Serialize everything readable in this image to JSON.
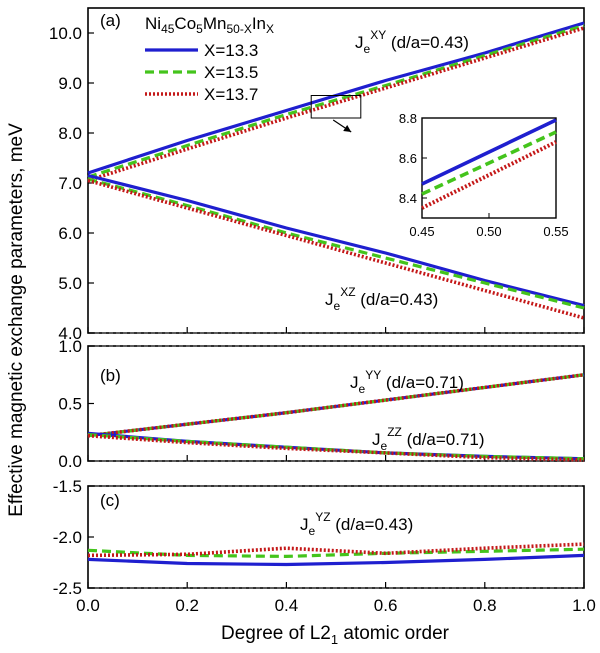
{
  "figure": {
    "ylabel": "Effective magnetic exchange parameters, meV",
    "xlabel_main": "Degree of L2",
    "xlabel_sub": "1",
    "xlabel_tail": " atomic order",
    "x_ticks": [
      "0.0",
      "0.2",
      "0.4",
      "0.6",
      "0.8",
      "1.0"
    ]
  },
  "colors": {
    "X=13.3": "#1f1fcf",
    "X=13.5": "#44c41c",
    "X=13.7": "#c41818"
  },
  "legend": {
    "title_ni": "Ni",
    "title_ni_sub": "45",
    "title_co": "Co",
    "title_co_sub": "5",
    "title_mn": "Mn",
    "title_mn_sub": "50-X",
    "title_in": "In",
    "title_in_sub": "X",
    "entries": [
      "X=13.3",
      "X=13.5",
      "X=13.7"
    ]
  },
  "chart_data": [
    {
      "type": "line",
      "panel_label": "(a)",
      "xlim": [
        0,
        1
      ],
      "ylim": [
        4.0,
        10.5
      ],
      "y_ticks": [
        "4.0",
        "5.0",
        "6.0",
        "7.0",
        "8.0",
        "9.0",
        "10.0"
      ],
      "annotations": [
        {
          "base": "J",
          "sub": "e",
          "sup": "XY",
          "tail": " (d/a=0.43)"
        },
        {
          "base": "J",
          "sub": "e",
          "sup": "XZ",
          "tail": " (d/a=0.43)"
        }
      ],
      "x": [
        0.0,
        0.2,
        0.4,
        0.6,
        0.8,
        1.0
      ],
      "series": [
        {
          "name": "X=13.3",
          "group": "XY",
          "values": [
            7.2,
            7.85,
            8.45,
            9.05,
            9.6,
            10.2
          ]
        },
        {
          "name": "X=13.5",
          "group": "XY",
          "values": [
            7.12,
            7.75,
            8.37,
            8.95,
            9.55,
            10.15
          ]
        },
        {
          "name": "X=13.7",
          "group": "XY",
          "values": [
            7.05,
            7.68,
            8.3,
            8.9,
            9.5,
            10.1
          ]
        },
        {
          "name": "X=13.3",
          "group": "XZ",
          "values": [
            7.15,
            6.65,
            6.1,
            5.6,
            5.05,
            4.55
          ]
        },
        {
          "name": "X=13.5",
          "group": "XZ",
          "values": [
            7.08,
            6.55,
            6.0,
            5.5,
            5.0,
            4.5
          ]
        },
        {
          "name": "X=13.7",
          "group": "XZ",
          "values": [
            7.05,
            6.5,
            5.95,
            5.4,
            4.85,
            4.3
          ]
        }
      ],
      "inset": {
        "xlim": [
          0.45,
          0.55
        ],
        "ylim": [
          8.3,
          8.8
        ],
        "x_ticks": [
          "0.45",
          "0.50",
          "0.55"
        ],
        "y_ticks": [
          "8.4",
          "8.6",
          "8.8"
        ],
        "x": [
          0.45,
          0.55
        ],
        "series": [
          {
            "name": "X=13.3",
            "values": [
              8.47,
              8.79
            ]
          },
          {
            "name": "X=13.5",
            "values": [
              8.42,
              8.73
            ]
          },
          {
            "name": "X=13.7",
            "values": [
              8.35,
              8.68
            ]
          }
        ]
      }
    },
    {
      "type": "line",
      "panel_label": "(b)",
      "xlim": [
        0,
        1
      ],
      "ylim": [
        0.0,
        1.0
      ],
      "y_ticks": [
        "0.0",
        "0.5",
        "1.0"
      ],
      "annotations": [
        {
          "base": "J",
          "sub": "e",
          "sup": "YY",
          "tail": " (d/a=0.71)"
        },
        {
          "base": "J",
          "sub": "e",
          "sup": "ZZ",
          "tail": " (d/a=0.71)"
        }
      ],
      "x": [
        0.0,
        0.2,
        0.4,
        0.6,
        0.8,
        1.0
      ],
      "series": [
        {
          "name": "X=13.3",
          "group": "YY",
          "values": [
            0.22,
            0.32,
            0.42,
            0.53,
            0.64,
            0.75
          ]
        },
        {
          "name": "X=13.5",
          "group": "YY",
          "values": [
            0.22,
            0.32,
            0.42,
            0.53,
            0.64,
            0.75
          ]
        },
        {
          "name": "X=13.7",
          "group": "YY",
          "values": [
            0.22,
            0.32,
            0.42,
            0.53,
            0.64,
            0.75
          ]
        },
        {
          "name": "X=13.3",
          "group": "ZZ",
          "values": [
            0.24,
            0.17,
            0.12,
            0.07,
            0.04,
            0.02
          ]
        },
        {
          "name": "X=13.5",
          "group": "ZZ",
          "values": [
            0.23,
            0.17,
            0.12,
            0.07,
            0.04,
            0.02
          ]
        },
        {
          "name": "X=13.7",
          "group": "ZZ",
          "values": [
            0.22,
            0.16,
            0.11,
            0.07,
            0.03,
            0.01
          ]
        }
      ]
    },
    {
      "type": "line",
      "panel_label": "(c)",
      "xlim": [
        0,
        1
      ],
      "ylim": [
        -2.5,
        -1.5
      ],
      "y_ticks": [
        "-2.5",
        "-2.0",
        "-1.5"
      ],
      "annotations": [
        {
          "base": "J",
          "sub": "e",
          "sup": "YZ",
          "tail": " (d/a=0.43)"
        }
      ],
      "x": [
        0.0,
        0.2,
        0.4,
        0.6,
        0.8,
        1.0
      ],
      "series": [
        {
          "name": "X=13.3",
          "values": [
            -2.22,
            -2.26,
            -2.27,
            -2.25,
            -2.22,
            -2.18
          ]
        },
        {
          "name": "X=13.5",
          "values": [
            -2.13,
            -2.18,
            -2.19,
            -2.16,
            -2.14,
            -2.12
          ]
        },
        {
          "name": "X=13.7",
          "values": [
            -2.18,
            -2.17,
            -2.11,
            -2.16,
            -2.11,
            -2.07
          ]
        }
      ]
    }
  ]
}
